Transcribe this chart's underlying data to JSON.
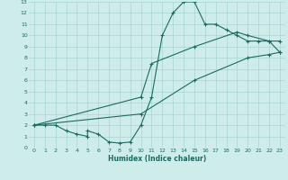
{
  "xlabel": "Humidex (Indice chaleur)",
  "background_color": "#ceecea",
  "grid_color": "#a8d4d0",
  "line_color": "#1a6b60",
  "xlim": [
    -0.5,
    23.5
  ],
  "ylim": [
    0,
    13
  ],
  "xticks": [
    0,
    1,
    2,
    3,
    4,
    5,
    6,
    7,
    8,
    9,
    10,
    11,
    12,
    13,
    14,
    15,
    16,
    17,
    18,
    19,
    20,
    21,
    22,
    23
  ],
  "yticks": [
    0,
    1,
    2,
    3,
    4,
    5,
    6,
    7,
    8,
    9,
    10,
    11,
    12,
    13
  ],
  "curve1_x": [
    0,
    1,
    2,
    3,
    4,
    5,
    5,
    6,
    7,
    8,
    9,
    10,
    11,
    12,
    13,
    14,
    15,
    16,
    17,
    18,
    19,
    20,
    21,
    22,
    23
  ],
  "curve1_y": [
    2,
    2,
    2,
    1.5,
    1.2,
    1,
    1.5,
    1.2,
    0.5,
    0.4,
    0.5,
    2,
    4.5,
    10,
    12,
    13,
    13,
    11,
    11,
    10.5,
    10,
    9.5,
    9.5,
    9.5,
    9.5
  ],
  "curve2_x": [
    0,
    10,
    11,
    15,
    19,
    20,
    22,
    23
  ],
  "curve2_y": [
    2,
    4.5,
    7.5,
    9,
    10.3,
    10,
    9.5,
    8.5
  ],
  "curve3_x": [
    0,
    10,
    15,
    20,
    22,
    23
  ],
  "curve3_y": [
    2,
    3,
    6,
    8,
    8.3,
    8.5
  ]
}
